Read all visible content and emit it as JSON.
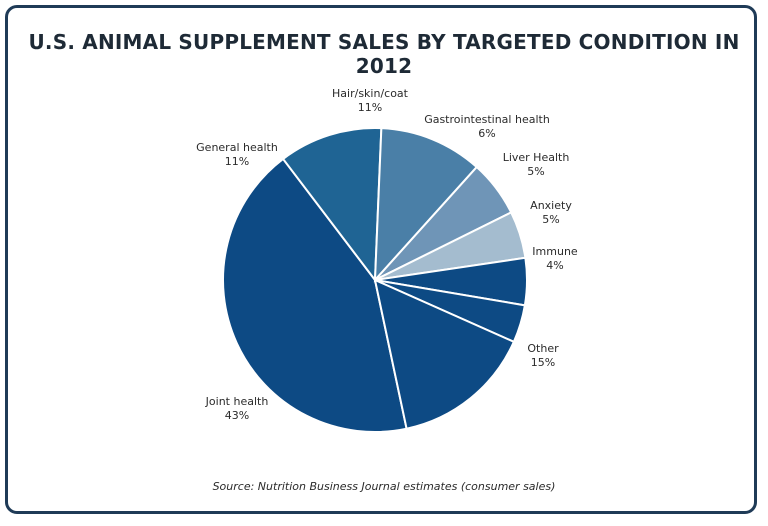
{
  "chart_data": {
    "type": "pie",
    "title": "U.S. ANIMAL SUPPLEMENT SALES BY TARGETED CONDITION IN 2012",
    "source": "Source: Nutrition Business Journal estimates (consumer sales)",
    "slices": [
      {
        "label": "Joint health",
        "value": 43,
        "value_label": "43%",
        "color": "#0d4a84"
      },
      {
        "label": "General health",
        "value": 11,
        "value_label": "11%",
        "color": "#1f6494"
      },
      {
        "label": "Hair/skin/coat",
        "value": 11,
        "value_label": "11%",
        "color": "#4a7fa7"
      },
      {
        "label": "Gastrointestinal health",
        "value": 6,
        "value_label": "6%",
        "color": "#6f95b7"
      },
      {
        "label": "Liver Health",
        "value": 5,
        "value_label": "5%",
        "color": "#a4bccf"
      },
      {
        "label": "Anxiety",
        "value": 5,
        "value_label": "5%",
        "color": "#0d4a84"
      },
      {
        "label": "Immune",
        "value": 4,
        "value_label": "4%",
        "color": "#0d4a84"
      },
      {
        "label": "Other",
        "value": 15,
        "value_label": "15%",
        "color": "#0d4a84"
      }
    ]
  }
}
